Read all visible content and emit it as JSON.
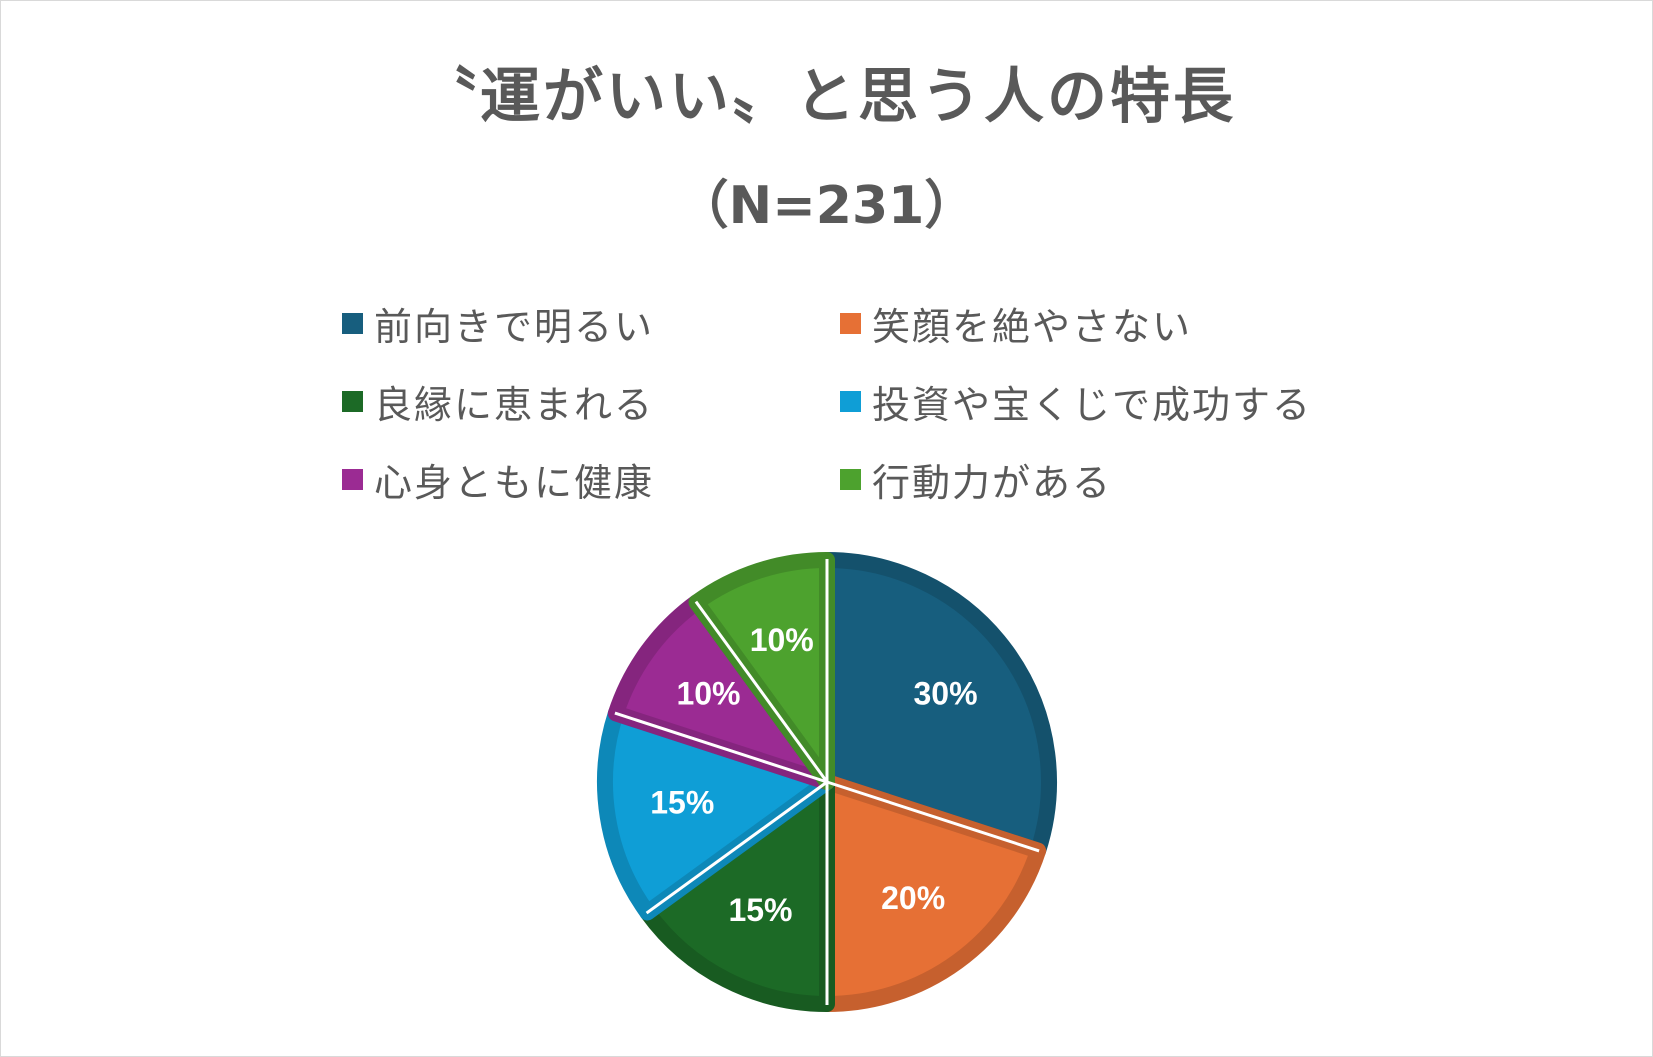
{
  "chart_data": {
    "type": "pie",
    "title": "〝運がいい〟と思う人の特長",
    "subtitle": "（N=231）",
    "legend_position": "top",
    "data_labels_shown": true,
    "slices": [
      {
        "label": "前向きで明るい",
        "value": 30,
        "display": "30%",
        "color": "#175e7e"
      },
      {
        "label": "笑顔を絶やさない",
        "value": 20,
        "display": "20%",
        "color": "#e67035"
      },
      {
        "label": "良縁に恵まれる",
        "value": 15,
        "display": "15%",
        "color": "#1c6a26"
      },
      {
        "label": "投資や宝くじで成功する",
        "value": 15,
        "display": "15%",
        "color": "#0f9ed6"
      },
      {
        "label": "心身ともに健康",
        "value": 10,
        "display": "10%",
        "color": "#9b2b93"
      },
      {
        "label": "行動力がある",
        "value": 10,
        "display": "10%",
        "color": "#4da22e"
      }
    ]
  }
}
